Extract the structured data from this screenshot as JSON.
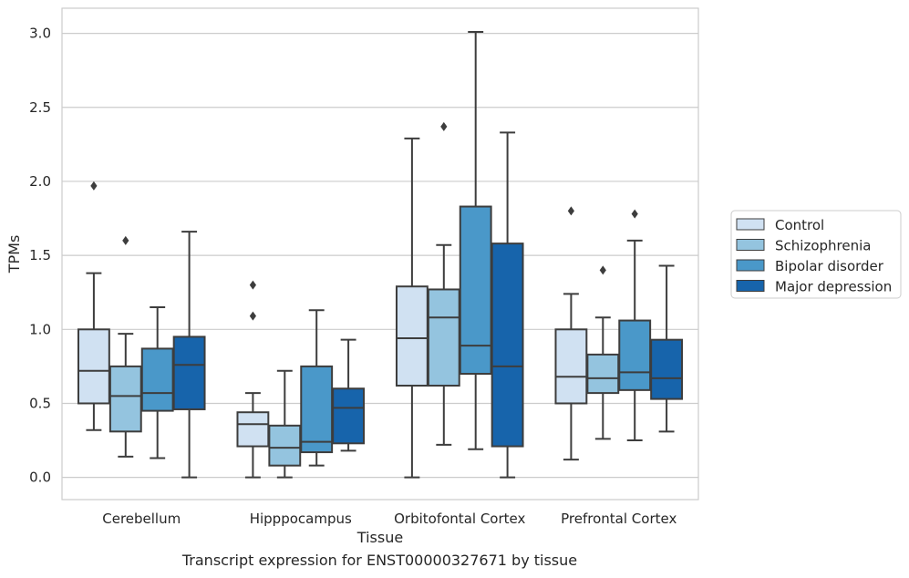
{
  "caption": "Transcript expression for ENST00000327671 by tissue",
  "chart_data": {
    "type": "box",
    "xlabel": "Tissue",
    "ylabel": "TPMs",
    "ylim": [
      -0.15,
      3.17
    ],
    "yticks": [
      "0.0",
      "0.5",
      "1.0",
      "1.5",
      "2.0",
      "2.5",
      "3.0"
    ],
    "ytick_values": [
      0,
      0.5,
      1.0,
      1.5,
      2.0,
      2.5,
      3.0
    ],
    "grid": "horizontal",
    "legend_position": "right",
    "categories": [
      "Cerebellum",
      "Hipppocampus",
      "Orbitofontal Cortex",
      "Prefrontal Cortex"
    ],
    "series": [
      {
        "name": "Control",
        "color": "#d0e1f2",
        "boxes": [
          {
            "whislo": 0.32,
            "q1": 0.5,
            "med": 0.72,
            "q3": 1.0,
            "whishi": 1.38,
            "fliers": [
              1.97
            ]
          },
          {
            "whislo": 0.0,
            "q1": 0.21,
            "med": 0.36,
            "q3": 0.44,
            "whishi": 0.57,
            "fliers": [
              1.09,
              1.3
            ]
          },
          {
            "whislo": 0.0,
            "q1": 0.62,
            "med": 0.94,
            "q3": 1.29,
            "whishi": 2.29,
            "fliers": []
          },
          {
            "whislo": 0.12,
            "q1": 0.5,
            "med": 0.68,
            "q3": 1.0,
            "whishi": 1.24,
            "fliers": [
              1.8
            ]
          }
        ]
      },
      {
        "name": "Schizophrenia",
        "color": "#94c4df",
        "boxes": [
          {
            "whislo": 0.14,
            "q1": 0.31,
            "med": 0.55,
            "q3": 0.75,
            "whishi": 0.97,
            "fliers": [
              1.6
            ]
          },
          {
            "whislo": 0.0,
            "q1": 0.08,
            "med": 0.2,
            "q3": 0.35,
            "whishi": 0.72,
            "fliers": []
          },
          {
            "whislo": 0.22,
            "q1": 0.62,
            "med": 1.08,
            "q3": 1.27,
            "whishi": 1.57,
            "fliers": [
              2.37
            ]
          },
          {
            "whislo": 0.26,
            "q1": 0.57,
            "med": 0.67,
            "q3": 0.83,
            "whishi": 1.08,
            "fliers": [
              1.4
            ]
          }
        ]
      },
      {
        "name": "Bipolar disorder",
        "color": "#4a98c9",
        "boxes": [
          {
            "whislo": 0.13,
            "q1": 0.45,
            "med": 0.57,
            "q3": 0.87,
            "whishi": 1.15,
            "fliers": []
          },
          {
            "whislo": 0.08,
            "q1": 0.17,
            "med": 0.24,
            "q3": 0.75,
            "whishi": 1.13,
            "fliers": []
          },
          {
            "whislo": 0.19,
            "q1": 0.7,
            "med": 0.89,
            "q3": 1.83,
            "whishi": 3.01,
            "fliers": []
          },
          {
            "whislo": 0.25,
            "q1": 0.59,
            "med": 0.71,
            "q3": 1.06,
            "whishi": 1.6,
            "fliers": [
              1.78
            ]
          }
        ]
      },
      {
        "name": "Major depression",
        "color": "#1764ab",
        "boxes": [
          {
            "whislo": 0.0,
            "q1": 0.46,
            "med": 0.76,
            "q3": 0.95,
            "whishi": 1.66,
            "fliers": []
          },
          {
            "whislo": 0.18,
            "q1": 0.23,
            "med": 0.47,
            "q3": 0.6,
            "whishi": 0.93,
            "fliers": []
          },
          {
            "whislo": 0.0,
            "q1": 0.21,
            "med": 0.75,
            "q3": 1.58,
            "whishi": 2.33,
            "fliers": []
          },
          {
            "whislo": 0.31,
            "q1": 0.53,
            "med": 0.67,
            "q3": 0.93,
            "whishi": 1.43,
            "fliers": []
          }
        ]
      }
    ]
  }
}
